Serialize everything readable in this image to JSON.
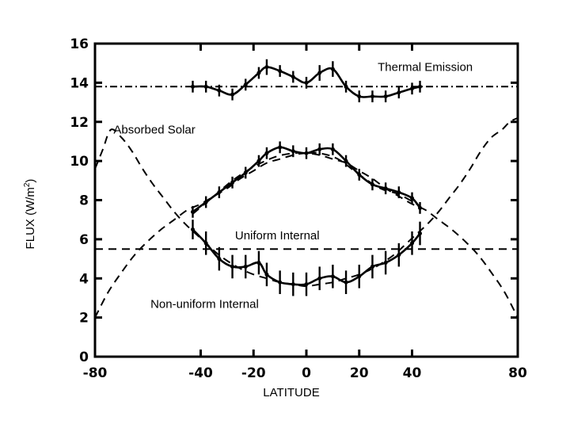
{
  "chart_data": {
    "type": "line",
    "xlabel": "LATITUDE",
    "ylabel": "FLUX (W/m",
    "ylabel_sup": "2",
    "ylabel_close": ")",
    "xlim": [
      -80,
      80
    ],
    "ylim": [
      0,
      16
    ],
    "x_ticks": [
      -80,
      -40,
      -20,
      0,
      20,
      40,
      80
    ],
    "x_tick_labels": [
      "-80",
      "-40",
      "-20",
      "0",
      "20",
      "40",
      "80"
    ],
    "y_ticks": [
      0,
      2,
      4,
      6,
      8,
      10,
      12,
      14,
      16
    ],
    "y_tick_labels": [
      "0",
      "2",
      "4",
      "6",
      "8",
      "10",
      "12",
      "14",
      "16"
    ],
    "grid": false,
    "annotations": [
      {
        "text": "Thermal Emission",
        "x": 27,
        "y": 14.6
      },
      {
        "text": "Absorbed Solar",
        "x": -73,
        "y": 11.4
      },
      {
        "text": "Uniform Internal",
        "x": -27,
        "y": 6.0
      },
      {
        "text": "Non-uniform Internal",
        "x": -59,
        "y": 2.5
      }
    ],
    "series": [
      {
        "style": "solid",
        "x": [
          -43,
          -38,
          -33,
          -28,
          -23,
          -18,
          -15,
          -10,
          -5,
          0,
          5,
          10,
          15,
          20,
          25,
          30,
          35,
          40,
          43
        ],
        "y": [
          13.8,
          13.8,
          13.6,
          13.4,
          13.9,
          14.5,
          14.8,
          14.6,
          14.3,
          14.0,
          14.5,
          14.7,
          13.8,
          13.3,
          13.3,
          13.3,
          13.5,
          13.7,
          13.8
        ],
        "errors": [
          0.3,
          0.3,
          0.3,
          0.3,
          0.3,
          0.3,
          0.4,
          0.3,
          0.3,
          0.3,
          0.4,
          0.4,
          0.3,
          0.3,
          0.3,
          0.3,
          0.3,
          0.3,
          0.3
        ]
      },
      {
        "style": "dash-dot",
        "x": [
          -80,
          80
        ],
        "y": [
          13.8,
          13.8
        ]
      },
      {
        "style": "solid",
        "x": [
          -43,
          -38,
          -33,
          -28,
          -23,
          -18,
          -15,
          -10,
          -5,
          0,
          5,
          10,
          15,
          20,
          25,
          30,
          35,
          40,
          43
        ],
        "y": [
          7.4,
          7.9,
          8.4,
          8.9,
          9.4,
          10.0,
          10.4,
          10.7,
          10.5,
          10.4,
          10.6,
          10.6,
          10.0,
          9.3,
          8.8,
          8.6,
          8.4,
          8.1,
          7.6
        ],
        "errors": [
          0.3,
          0.3,
          0.3,
          0.3,
          0.3,
          0.3,
          0.3,
          0.3,
          0.3,
          0.3,
          0.3,
          0.3,
          0.3,
          0.3,
          0.3,
          0.3,
          0.3,
          0.3,
          0.3
        ]
      },
      {
        "style": "dashed",
        "x": [
          -43,
          -35,
          -28,
          -20,
          -12,
          -5,
          0,
          5,
          12,
          20,
          28,
          35,
          43
        ],
        "y": [
          7.3,
          8.2,
          9.0,
          9.7,
          10.2,
          10.4,
          10.4,
          10.4,
          10.1,
          9.3,
          8.6,
          8.3,
          7.7
        ]
      },
      {
        "style": "solid",
        "x": [
          -43,
          -38,
          -33,
          -28,
          -23,
          -18,
          -15,
          -10,
          -5,
          0,
          5,
          10,
          15,
          20,
          25,
          30,
          35,
          40,
          43
        ],
        "y": [
          6.5,
          5.8,
          5.0,
          4.6,
          4.6,
          4.8,
          4.2,
          3.8,
          3.7,
          3.7,
          4.0,
          4.1,
          3.8,
          4.1,
          4.6,
          4.8,
          5.2,
          5.8,
          6.3
        ],
        "errors": [
          0.5,
          0.6,
          0.6,
          0.6,
          0.6,
          0.6,
          0.6,
          0.6,
          0.6,
          0.6,
          0.6,
          0.6,
          0.6,
          0.6,
          0.6,
          0.6,
          0.6,
          0.6,
          0.6
        ]
      },
      {
        "style": "dashed",
        "x": [
          -80,
          80
        ],
        "y": [
          5.5,
          5.5
        ]
      },
      {
        "style": "dashed",
        "x": [
          -80,
          -75,
          -70,
          -65,
          -60,
          -55,
          -50,
          -45,
          -40,
          -35,
          -30,
          -25,
          -20,
          -15,
          -10,
          -5,
          0,
          5,
          10,
          15,
          20,
          25,
          30,
          35,
          40,
          45,
          50,
          55,
          60,
          65,
          70,
          75,
          80
        ],
        "y": [
          2.0,
          3.3,
          4.3,
          5.2,
          5.9,
          6.5,
          7.0,
          7.5,
          7.8,
          8.2,
          8.6,
          9.1,
          9.5,
          9.9,
          10.1,
          10.3,
          10.4,
          10.3,
          10.1,
          9.9,
          9.5,
          9.1,
          8.6,
          8.2,
          7.8,
          7.5,
          7.0,
          6.5,
          5.9,
          5.2,
          4.3,
          3.3,
          2.0
        ]
      },
      {
        "style": "dashed",
        "x": [
          -80,
          -77,
          -74,
          -70,
          -66,
          -62,
          -58,
          -54,
          -50,
          -46,
          -42,
          -38,
          -34,
          -30,
          -25,
          -20,
          -15,
          -10,
          -5,
          0,
          5,
          10,
          15,
          20,
          25,
          30,
          34,
          38,
          42,
          46,
          50,
          54,
          58,
          62,
          66,
          70,
          74,
          77,
          80
        ],
        "y": [
          9.6,
          10.6,
          11.6,
          11.2,
          10.5,
          9.6,
          8.8,
          8.1,
          7.4,
          6.8,
          6.3,
          5.8,
          5.3,
          4.9,
          4.5,
          4.2,
          4.0,
          3.8,
          3.7,
          3.6,
          3.7,
          3.8,
          4.0,
          4.2,
          4.5,
          4.9,
          5.3,
          5.8,
          6.3,
          6.8,
          7.4,
          8.1,
          8.8,
          9.6,
          10.5,
          11.2,
          11.6,
          12.0,
          12.2
        ]
      }
    ]
  }
}
